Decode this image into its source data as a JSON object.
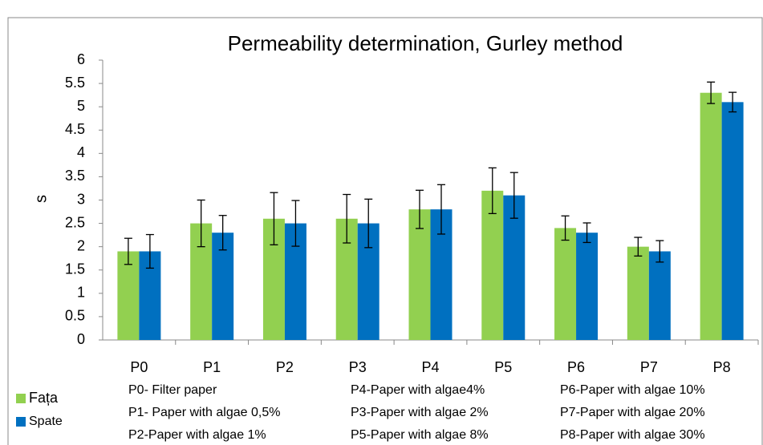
{
  "chart_data": {
    "type": "bar",
    "title": "Permeability determination, Gurley method",
    "y_label": "s",
    "categories": [
      "P0",
      "P1",
      "P2",
      "P3",
      "P4",
      "P5",
      "P6",
      "P7",
      "P8"
    ],
    "series": [
      {
        "name": "Fața",
        "color": "#92d050",
        "values": [
          1.9,
          2.5,
          2.6,
          2.6,
          2.8,
          3.2,
          2.4,
          2.0,
          5.3
        ],
        "errors": [
          0.28,
          0.5,
          0.56,
          0.52,
          0.41,
          0.49,
          0.26,
          0.2,
          0.23
        ]
      },
      {
        "name": "Spate",
        "color": "#0070c0",
        "values": [
          1.9,
          2.3,
          2.5,
          2.5,
          2.8,
          3.1,
          2.3,
          1.9,
          5.1
        ],
        "errors": [
          0.36,
          0.37,
          0.49,
          0.52,
          0.53,
          0.49,
          0.21,
          0.23,
          0.21
        ]
      }
    ],
    "ylim": [
      0,
      6
    ],
    "yticks": [
      0,
      0.5,
      1,
      1.5,
      2,
      2.5,
      3,
      3.5,
      4,
      4.5,
      5,
      5.5,
      6
    ],
    "grid": false,
    "notes": [
      "P0- Filter paper",
      "P4-Paper with algae4%",
      "P6-Paper with algae 10%",
      "P1- Paper with algae 0,5%",
      "P3-Paper with algae 2%",
      "P7-Paper with algae 20%",
      "P2-Paper with algae 1%",
      "P5-Paper with algae 8%",
      "P8-Paper with algae 30%"
    ]
  }
}
